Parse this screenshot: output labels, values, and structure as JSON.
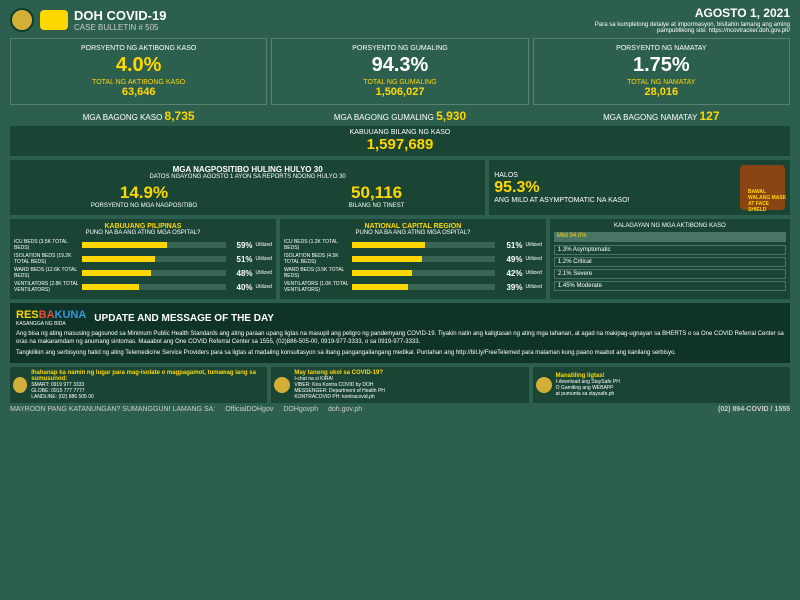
{
  "header": {
    "title": "DOH COVID-19",
    "subtitle": "CASE BULLETIN # 505",
    "date": "AGOSTO 1, 2021",
    "note": "Para sa kumpletong detalye at impormasyon, bisitahin lamang ang aming pampublikong site: https://ncovtracker.doh.gov.ph/"
  },
  "top": [
    {
      "label": "PORSYENTO NG AKTIBONG KASO",
      "pct": "4.0%",
      "totalLabel": "TOTAL NG AKTIBONG KASO",
      "total": "63,646",
      "yellow": true
    },
    {
      "label": "PORSYENTO NG GUMALING",
      "pct": "94.3%",
      "totalLabel": "TOTAL NG GUMALING",
      "total": "1,506,027",
      "yellow": false
    },
    {
      "label": "PORSYENTO NG NAMATAY",
      "pct": "1.75%",
      "totalLabel": "TOTAL NG NAMATAY",
      "total": "28,016",
      "yellow": false
    }
  ],
  "new": [
    {
      "label": "MGA BAGONG KASO",
      "val": "8,735"
    },
    {
      "label": "MGA BAGONG GUMALING",
      "val": "5,930"
    },
    {
      "label": "MGA BAGONG NAMATAY",
      "val": "127"
    }
  ],
  "totalCases": {
    "label": "KABUUANG BILANG NG KASO",
    "val": "1,597,689"
  },
  "positive": {
    "title": "MGA NAGPOSITIBO HULING HULYO 30",
    "sub": "DATOS NGAYONG AGOSTO 1 AYON SA REPORTS NOONG HULYO 30",
    "stats": [
      {
        "val": "14.9%",
        "label": "PORSYENTO NG MGA NAGPOSITIBO"
      },
      {
        "val": "50,116",
        "label": "BILANG NG TINEST"
      }
    ]
  },
  "halos": {
    "label": "HALOS",
    "pct": "95.3%",
    "sub": "ANG MILD AT ASYMPTOMATIC NA KASO!",
    "bawal": "BAWAL WALANG MASK AT FACE SHIELD"
  },
  "hospitals": [
    {
      "title": "KABUUANG PILIPINAS",
      "sub": "PUNO NA BA ANG ATING MGA OSPITAL?",
      "beds": [
        {
          "label": "ICU BEDS (3.5K TOTAL BEDS)",
          "pct": 59
        },
        {
          "label": "ISOLATION BEDS (19.2K TOTAL BEDS)",
          "pct": 51
        },
        {
          "label": "WARD BEDS (12.6K TOTAL BEDS)",
          "pct": 48
        },
        {
          "label": "VENTILATORS (2.8K TOTAL VENTILATORS)",
          "pct": 40
        }
      ]
    },
    {
      "title": "NATIONAL CAPITAL REGION",
      "sub": "PUNO NA BA ANG ATING MGA OSPITAL?",
      "beds": [
        {
          "label": "ICU BEDS (1.2K TOTAL BEDS)",
          "pct": 51
        },
        {
          "label": "ISOLATION BEDS (4.5K TOTAL BEDS)",
          "pct": 49
        },
        {
          "label": "WARD BEDS (3.5K TOTAL BEDS)",
          "pct": 42
        },
        {
          "label": "VENTILATORS (1.0K TOTAL VENTILATORS)",
          "pct": 39
        }
      ]
    }
  ],
  "status": {
    "title": "KALAGAYAN NG MGA AKTIBONG KASO",
    "mild": "Mild 94.0%",
    "rows": [
      "1.3% Asymptomatic",
      "1.2% Critical",
      "2.1% Severe",
      "1.45% Moderate"
    ]
  },
  "message": {
    "brand": [
      "RES",
      "BA",
      "KUNA"
    ],
    "brandSub": "KASANGGA NG BIDA",
    "title": "UPDATE AND MESSAGE OF THE DAY",
    "text": "Ang bisa ng ating masusing pagsunod sa Minimum Public Health Standards ang ating paraan upang ligtas na masupil ang peligro ng pandemyang COVID-19. Tiyakin natin ang kaligtasan ng ating mga tahanan, at agad na makipag-ugnayan sa BHERTS o sa One COVID Referral Center sa oras na makaramdam ng anumang sintomas. Maaabot ang One COVID Referral Center sa 1555, (02)886-505-00, 0919-977-3333, o sa 0919-977-3333.",
    "text2": "Tangkilikin ang serbisyong hatid ng ating Telemedicine Service Providers para sa ligtas at madaling konsultasyon sa ibang pangangailangang medikal. Puntahan ang http://bit.ly/FreeTelemed para malaman kung paano maabot ang kanilang serbisyo."
  },
  "contacts": [
    {
      "title": "Ihahanap ka namin ng lugar para mag-isolate o magpagamot, tumawag lang sa sumusunod:",
      "lines": [
        "SMART: 0919 977 3333",
        "GLOBE: 0915 777 7777",
        "LANDLINE: (02) 886 505 00"
      ]
    },
    {
      "title": "May tanong ukol sa COVID-19?",
      "sub": "I-chat na si KIRA!",
      "lines": [
        "VIBER: Kira Kontra COVID by DOH",
        "MESSENGER: Department of Health PH",
        "KONTRACOVID PH: kontracovid.ph"
      ]
    },
    {
      "title": "Manatiling ligtas!",
      "lines": [
        "I-download ang StaySafe PH",
        "O Gamiting ang WEBAPP",
        "at pumunta sa staysafe.ph"
      ]
    }
  ],
  "footer": {
    "question": "MAYROON PANG KATANUNGAN? SUMANGGUNI LAMANG SA:",
    "handles": [
      "OfficialDOHgov",
      "DOHgovph",
      "doh.gov.ph"
    ],
    "hotline": "(02) 894-COVID / 1555"
  }
}
